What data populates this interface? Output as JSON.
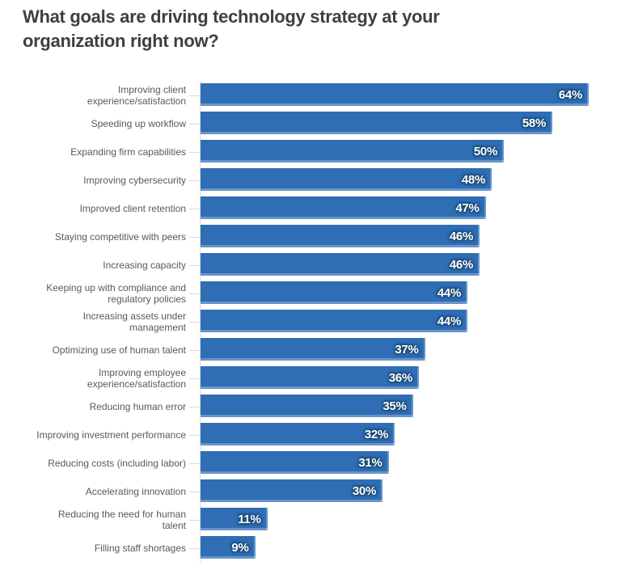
{
  "title": "What goals are driving technology strategy at your\norganization right now?",
  "colors": {
    "bar": "#2F6DB4",
    "value_label": "#FFFFFF",
    "value_label_glow": "#17466E",
    "axis_line": "#D9D9D9",
    "category_label": "#595959",
    "title": "#3F3F3F",
    "background": "#FFFFFF"
  },
  "chart_data": {
    "type": "bar",
    "orientation": "horizontal",
    "title": "What goals are driving technology strategy at your organization right now?",
    "xlabel": "",
    "ylabel": "",
    "value_suffix": "%",
    "xlim": [
      0,
      68
    ],
    "grid": false,
    "legend": false,
    "categories": [
      "Improving client\nexperience/satisfaction",
      "Speeding up workflow",
      "Expanding firm capabilities",
      "Improving cybersecurity",
      "Improved client retention",
      "Staying competitive with peers",
      "Increasing capacity",
      "Keeping up with compliance and\nregulatory policies",
      "Increasing assets under\nmanagement",
      "Optimizing use of human talent",
      "Improving employee\nexperience/satisfaction",
      "Reducing human error",
      "Improving investment performance",
      "Reducing costs (including labor)",
      "Accelerating innovation",
      "Reducing the need for human\ntalent",
      "Filling staff shortages"
    ],
    "values": [
      64,
      58,
      50,
      48,
      47,
      46,
      46,
      44,
      44,
      37,
      36,
      35,
      32,
      31,
      30,
      11,
      9
    ],
    "value_labels": [
      "64%",
      "58%",
      "50%",
      "48%",
      "47%",
      "46%",
      "46%",
      "44%",
      "44%",
      "37%",
      "36%",
      "35%",
      "32%",
      "31%",
      "30%",
      "11%",
      "9%"
    ]
  }
}
